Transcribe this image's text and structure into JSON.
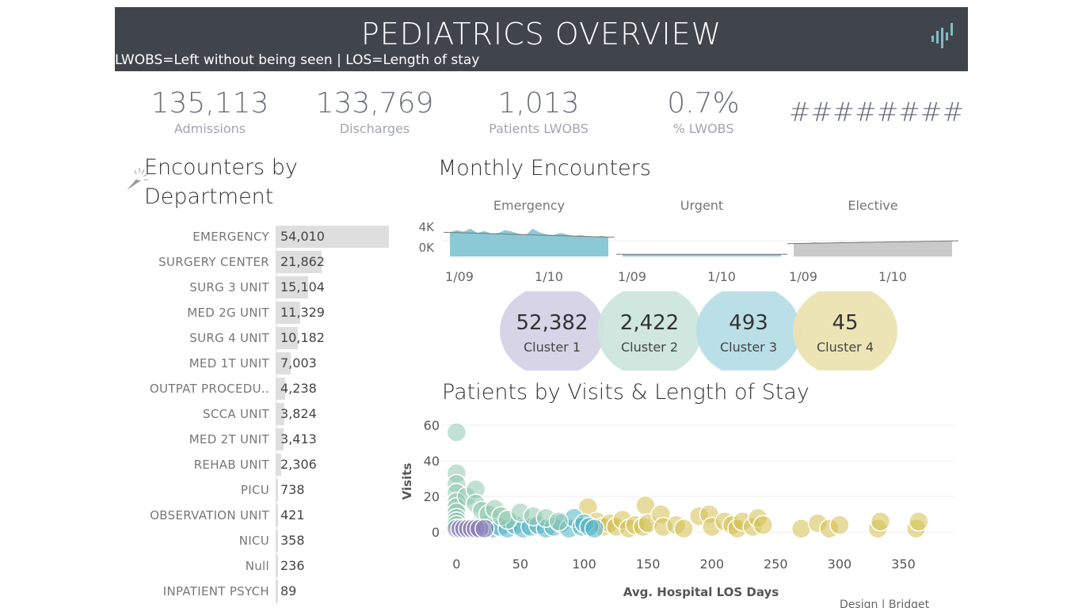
{
  "header": {
    "title": "PEDIATRICS OVERVIEW",
    "subtitle": "LWOBS=Left without being seen | LOS=Length of stay",
    "logo_icon": "tableau-logo-icon"
  },
  "kpis": [
    {
      "value": "135,113",
      "label": "Admissions"
    },
    {
      "value": "133,769",
      "label": "Discharges"
    },
    {
      "value": "1,013",
      "label": "Patients LWOBS"
    },
    {
      "value": "0.7%",
      "label": "% LWOBS"
    },
    {
      "value": "########",
      "label": ""
    }
  ],
  "departments": {
    "title_line1": "Encounters by",
    "title_line2": "Department",
    "items": [
      {
        "name": "EMERGENCY",
        "value": 54010,
        "label": "54,010"
      },
      {
        "name": "SURGERY CENTER",
        "value": 21862,
        "label": "21,862"
      },
      {
        "name": "SURG 3 UNIT",
        "value": 15104,
        "label": "15,104"
      },
      {
        "name": "MED 2G UNIT",
        "value": 11329,
        "label": "11,329"
      },
      {
        "name": "SURG 4 UNIT",
        "value": 10182,
        "label": "10,182"
      },
      {
        "name": "MED 1T UNIT",
        "value": 7003,
        "label": "7,003"
      },
      {
        "name": "OUTPAT PROCEDU..",
        "value": 4238,
        "label": "4,238"
      },
      {
        "name": "SCCA UNIT",
        "value": 3824,
        "label": "3,824"
      },
      {
        "name": "MED 2T UNIT",
        "value": 3413,
        "label": "3,413"
      },
      {
        "name": "REHAB UNIT",
        "value": 2306,
        "label": "2,306"
      },
      {
        "name": "PICU",
        "value": 738,
        "label": "738"
      },
      {
        "name": "OBSERVATION UNIT",
        "value": 421,
        "label": "421"
      },
      {
        "name": "NICU",
        "value": 358,
        "label": "358"
      },
      {
        "name": "Null",
        "value": 236,
        "label": "236"
      },
      {
        "name": "INPATIENT PSYCH",
        "value": 89,
        "label": "89"
      }
    ]
  },
  "monthly": {
    "title": "Monthly Encounters",
    "y_ticks": [
      "4K",
      "0K"
    ],
    "panels": [
      {
        "name": "Emergency",
        "color": "#8cc9d6",
        "ticks": [
          "1/09",
          "1/10"
        ],
        "values": [
          3400,
          3700,
          3500,
          3900,
          3300,
          3600,
          3200,
          3300,
          3700,
          3500,
          3200,
          3000,
          3900,
          3400,
          3100,
          3000,
          3300,
          3100,
          2900,
          3000,
          2800,
          2700,
          2900,
          2700
        ]
      },
      {
        "name": "Urgent",
        "color": "#8cc9d6",
        "ticks": [
          "1/09",
          "1/10"
        ],
        "values": [
          300,
          280,
          310,
          290,
          270,
          300,
          320,
          290,
          280,
          300,
          310,
          290,
          280,
          300,
          290,
          280,
          300,
          310,
          290,
          300,
          280,
          290,
          300,
          310
        ]
      },
      {
        "name": "Elective",
        "color": "#c9c9c9",
        "ticks": [
          "1/09",
          "1/10"
        ],
        "values": [
          1800,
          1900,
          1850,
          2000,
          1950,
          1900,
          2000,
          2050,
          1950,
          2000,
          2100,
          2000,
          1950,
          2050,
          2100,
          2000,
          2050,
          2150,
          2100,
          2050,
          2150,
          2100,
          2150,
          2200
        ]
      }
    ]
  },
  "clusters": [
    {
      "value": "52,382",
      "label": "Cluster 1",
      "color": "#d4d0e6"
    },
    {
      "value": "2,422",
      "label": "Cluster 2",
      "color": "#cbe5db"
    },
    {
      "value": "493",
      "label": "Cluster 3",
      "color": "#b5dce5"
    },
    {
      "value": "45",
      "label": "Cluster 4",
      "color": "#ece2b0"
    }
  ],
  "scatter": {
    "title": "Patients by Visits & Length of Stay",
    "xlabel": "Avg. Hospital LOS Days",
    "ylabel": "Visits",
    "x_ticks": [
      0,
      50,
      100,
      150,
      200,
      250,
      300,
      350
    ],
    "y_ticks": [
      0,
      20,
      40,
      60
    ],
    "xlim": [
      -12,
      390
    ],
    "ylim": [
      -7,
      64
    ],
    "cluster_colors": [
      "#8d80b8",
      "#8fc8ad",
      "#4fb3c4",
      "#d4c04e"
    ],
    "points": {
      "cluster1": [
        [
          0,
          2
        ],
        [
          3,
          2
        ],
        [
          6,
          2
        ],
        [
          9,
          2
        ],
        [
          12,
          2
        ],
        [
          15,
          2
        ],
        [
          18,
          2
        ],
        [
          22,
          2
        ]
      ],
      "cluster2": [
        [
          0,
          56
        ],
        [
          0,
          33
        ],
        [
          0,
          27
        ],
        [
          0,
          22
        ],
        [
          0,
          17
        ],
        [
          0,
          14
        ],
        [
          0,
          11
        ],
        [
          0,
          8
        ],
        [
          0,
          6
        ],
        [
          0,
          4
        ],
        [
          8,
          20
        ],
        [
          15,
          24
        ],
        [
          15,
          16
        ],
        [
          20,
          12
        ],
        [
          25,
          10
        ],
        [
          30,
          13
        ],
        [
          35,
          9
        ],
        [
          40,
          7
        ],
        [
          50,
          11
        ],
        [
          60,
          9
        ],
        [
          70,
          8
        ],
        [
          80,
          6
        ]
      ],
      "cluster3": [
        [
          15,
          3
        ],
        [
          22,
          4
        ],
        [
          28,
          2
        ],
        [
          34,
          3
        ],
        [
          40,
          2
        ],
        [
          46,
          4
        ],
        [
          52,
          2
        ],
        [
          58,
          3
        ],
        [
          64,
          4
        ],
        [
          70,
          2
        ],
        [
          76,
          3
        ],
        [
          82,
          5
        ],
        [
          88,
          2
        ],
        [
          92,
          8
        ],
        [
          98,
          3
        ],
        [
          100,
          5
        ],
        [
          104,
          3
        ],
        [
          108,
          2
        ]
      ],
      "cluster4": [
        [
          103,
          14
        ],
        [
          110,
          6
        ],
        [
          115,
          3
        ],
        [
          120,
          5
        ],
        [
          125,
          3
        ],
        [
          130,
          7
        ],
        [
          135,
          2
        ],
        [
          140,
          4
        ],
        [
          146,
          3
        ],
        [
          148,
          15
        ],
        [
          150,
          5
        ],
        [
          160,
          10
        ],
        [
          162,
          3
        ],
        [
          172,
          4
        ],
        [
          178,
          2
        ],
        [
          190,
          9
        ],
        [
          198,
          10
        ],
        [
          200,
          3
        ],
        [
          210,
          6
        ],
        [
          216,
          4
        ],
        [
          220,
          2
        ],
        [
          224,
          6
        ],
        [
          232,
          3
        ],
        [
          236,
          8
        ],
        [
          240,
          4
        ],
        [
          270,
          2
        ],
        [
          283,
          5
        ],
        [
          292,
          2
        ],
        [
          300,
          4
        ],
        [
          330,
          2
        ],
        [
          332,
          6
        ],
        [
          360,
          2
        ],
        [
          362,
          6
        ]
      ]
    }
  },
  "footer": {
    "credit": "Design | Bridget"
  }
}
